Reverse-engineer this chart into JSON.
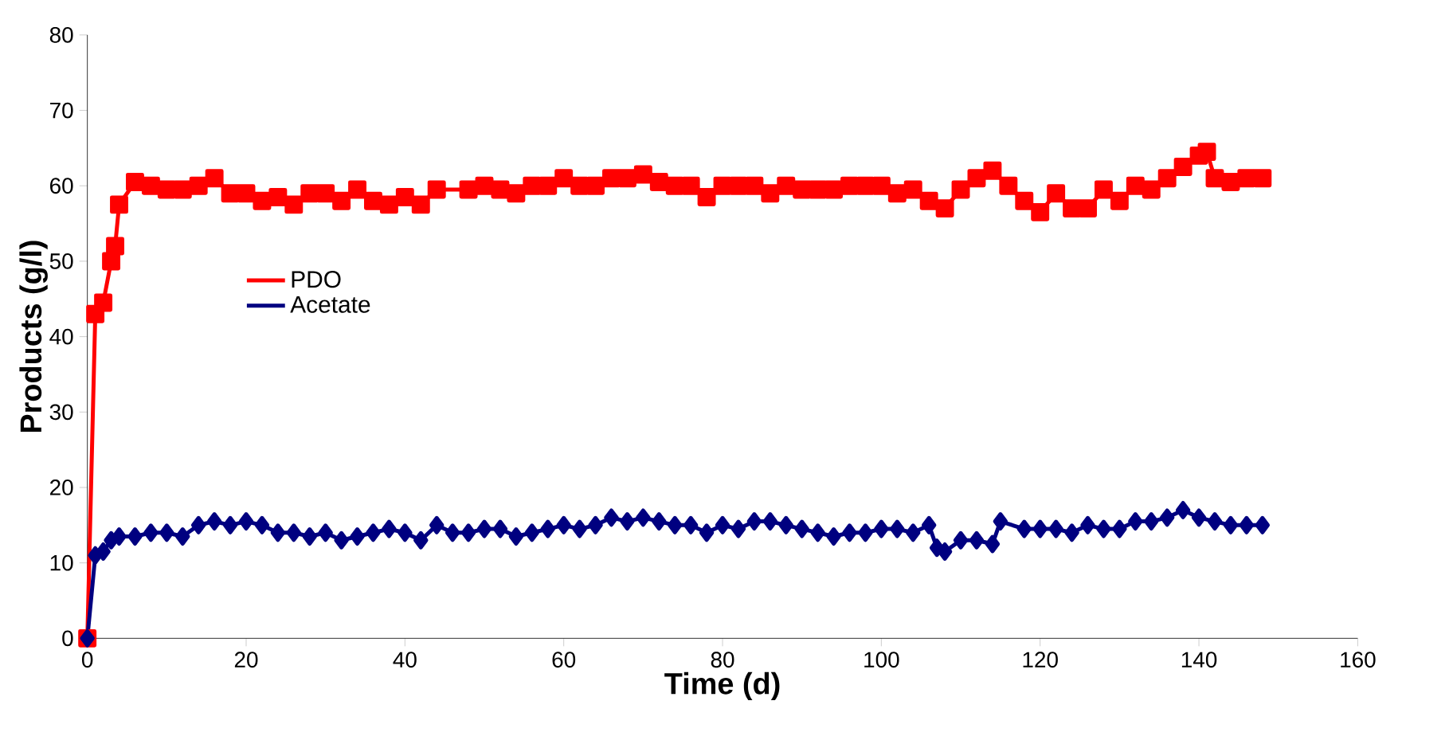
{
  "chart_data": {
    "type": "line",
    "xlabel": "Time (d)",
    "ylabel": "Products (g/l)",
    "xlim": [
      0,
      160
    ],
    "xticks": [
      0,
      20,
      40,
      60,
      80,
      100,
      120,
      140,
      160
    ],
    "ylim": [
      0,
      80
    ],
    "yticks": [
      0,
      10,
      20,
      30,
      40,
      50,
      60,
      70,
      80
    ],
    "grid": false,
    "legend": "left",
    "line_style": "solid",
    "series": [
      {
        "name": "PDO",
        "color": "#ff0000",
        "marker": "square",
        "x": [
          0,
          1,
          2,
          3,
          3.5,
          4,
          6,
          8,
          10,
          12,
          14,
          16,
          18,
          20,
          22,
          24,
          26,
          28,
          30,
          32,
          34,
          36,
          38,
          40,
          42,
          44,
          48,
          50,
          52,
          54,
          56,
          58,
          60,
          62,
          64,
          66,
          68,
          70,
          72,
          74,
          76,
          78,
          80,
          82,
          84,
          86,
          88,
          90,
          92,
          94,
          96,
          98,
          100,
          102,
          104,
          106,
          108,
          110,
          112,
          114,
          116,
          118,
          120,
          122,
          124,
          126,
          128,
          130,
          132,
          134,
          136,
          138,
          140,
          141,
          142,
          144,
          146,
          148
        ],
        "values": [
          0,
          43,
          44.5,
          50,
          52,
          57.5,
          60.5,
          60,
          59.5,
          59.5,
          60,
          61,
          59,
          59,
          58,
          58.5,
          57.5,
          59,
          59,
          58,
          59.5,
          58,
          57.5,
          58.5,
          57.5,
          59.5,
          59.5,
          60,
          59.5,
          59,
          60,
          60,
          61,
          60,
          60,
          61,
          61,
          61.5,
          60.5,
          60,
          60,
          58.5,
          60,
          60,
          60,
          59,
          60,
          59.5,
          59.5,
          59.5,
          60,
          60,
          60,
          59,
          59.5,
          58,
          57,
          59.5,
          61,
          62,
          60,
          58,
          56.5,
          59,
          57,
          57,
          59.5,
          58,
          60,
          59.5,
          61,
          62.5,
          64,
          64.5,
          61,
          60.5,
          61,
          61
        ]
      },
      {
        "name": "Acetate",
        "color": "#000080",
        "marker": "diamond",
        "x": [
          0,
          1,
          2,
          3,
          4,
          6,
          8,
          10,
          12,
          14,
          16,
          18,
          20,
          22,
          24,
          26,
          28,
          30,
          32,
          34,
          36,
          38,
          40,
          42,
          44,
          46,
          48,
          50,
          52,
          54,
          56,
          58,
          60,
          62,
          64,
          66,
          68,
          70,
          72,
          74,
          76,
          78,
          80,
          82,
          84,
          86,
          88,
          90,
          92,
          94,
          96,
          98,
          100,
          102,
          104,
          106,
          107,
          108,
          110,
          112,
          114,
          115,
          118,
          120,
          122,
          124,
          126,
          128,
          130,
          132,
          134,
          136,
          138,
          140,
          142,
          144,
          146,
          148
        ],
        "values": [
          0,
          11,
          11.5,
          13,
          13.5,
          13.5,
          14,
          14,
          13.5,
          15,
          15.5,
          15,
          15.5,
          15,
          14,
          14,
          13.5,
          14,
          13,
          13.5,
          14,
          14.5,
          14,
          13,
          15,
          14,
          14,
          14.5,
          14.5,
          13.5,
          14,
          14.5,
          15,
          14.5,
          15,
          16,
          15.5,
          16,
          15.5,
          15,
          15,
          14,
          15,
          14.5,
          15.5,
          15.5,
          15,
          14.5,
          14,
          13.5,
          14,
          14,
          14.5,
          14.5,
          14,
          15,
          12,
          11.5,
          13,
          13,
          12.5,
          15.5,
          14.5,
          14.5,
          14.5,
          14,
          15,
          14.5,
          14.5,
          15.5,
          15.5,
          16,
          17,
          16,
          15.5,
          15,
          15,
          15
        ]
      }
    ]
  }
}
